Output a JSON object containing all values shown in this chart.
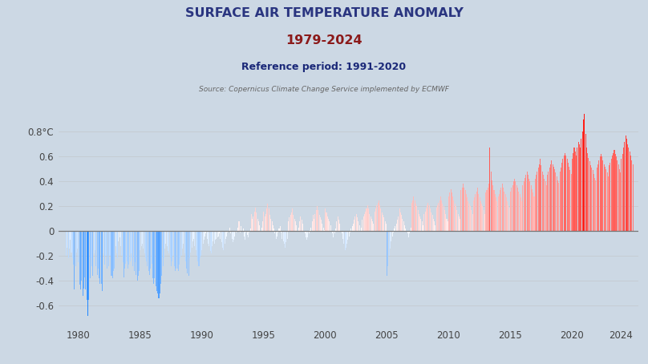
{
  "title_line1": "SURFACE AIR TEMPERATURE ANOMALY",
  "title_line2": "1979-2024",
  "subtitle": "Reference period: 1991-2020",
  "source": "Source: Copernicus Climate Change Service implemented by ECMWF",
  "ytick_labels": [
    "0.8°C",
    "0.6",
    "0.4",
    "0.2",
    "0",
    "-0.2",
    "-0.4",
    "-0.6"
  ],
  "ytick_values": [
    0.8,
    0.6,
    0.4,
    0.2,
    0.0,
    -0.2,
    -0.4,
    -0.6
  ],
  "xtick_years": [
    1980,
    1985,
    1990,
    1995,
    2000,
    2005,
    2010,
    2015,
    2020,
    2024
  ],
  "ylim": [
    -0.76,
    0.98
  ],
  "xlim": [
    1978.4,
    2025.4
  ],
  "bg_color": "#ccd8e4",
  "title_color1": "#2a3580",
  "title_color2": "#8b1a1a",
  "subtitle_color": "#1a2878",
  "source_color": "#666666",
  "start_year": 1979,
  "monthly_anomalies": [
    -0.2,
    -0.13,
    -0.22,
    -0.14,
    -0.07,
    -0.17,
    -0.22,
    -0.27,
    -0.47,
    -0.28,
    -0.17,
    -0.14,
    -0.25,
    -0.43,
    -0.47,
    -0.4,
    -0.52,
    -0.46,
    -0.37,
    -0.47,
    -0.55,
    -0.68,
    -0.55,
    -0.38,
    -0.22,
    -0.28,
    -0.36,
    -0.18,
    -0.15,
    -0.28,
    -0.35,
    -0.3,
    -0.38,
    -0.42,
    -0.42,
    -0.48,
    -0.18,
    -0.27,
    -0.2,
    -0.2,
    -0.3,
    -0.28,
    -0.2,
    -0.2,
    -0.36,
    -0.38,
    -0.32,
    -0.3,
    -0.12,
    -0.18,
    -0.22,
    -0.08,
    -0.05,
    -0.12,
    -0.2,
    -0.25,
    -0.37,
    -0.3,
    -0.26,
    -0.24,
    -0.3,
    -0.27,
    -0.24,
    -0.18,
    -0.22,
    -0.28,
    -0.32,
    -0.25,
    -0.35,
    -0.4,
    -0.36,
    -0.32,
    -0.15,
    -0.12,
    -0.1,
    -0.14,
    -0.18,
    -0.22,
    -0.24,
    -0.28,
    -0.32,
    -0.35,
    -0.3,
    -0.26,
    -0.38,
    -0.42,
    -0.38,
    -0.44,
    -0.48,
    -0.5,
    -0.54,
    -0.5,
    -0.42,
    -0.36,
    -0.28,
    -0.22,
    -0.14,
    -0.1,
    -0.12,
    -0.16,
    -0.18,
    -0.22,
    -0.28,
    -0.24,
    -0.2,
    -0.28,
    -0.32,
    -0.3,
    -0.3,
    -0.32,
    -0.27,
    -0.22,
    -0.2,
    -0.14,
    -0.1,
    -0.18,
    -0.24,
    -0.3,
    -0.34,
    -0.36,
    -0.22,
    -0.17,
    -0.13,
    -0.08,
    -0.06,
    -0.12,
    -0.15,
    -0.2,
    -0.24,
    -0.28,
    -0.22,
    -0.2,
    -0.15,
    -0.1,
    -0.07,
    -0.04,
    -0.02,
    -0.06,
    -0.1,
    -0.12,
    -0.16,
    -0.18,
    -0.12,
    -0.08,
    -0.1,
    -0.07,
    -0.06,
    -0.05,
    -0.04,
    -0.02,
    -0.06,
    -0.09,
    -0.13,
    -0.15,
    -0.1,
    -0.06,
    -0.04,
    -0.01,
    0.0,
    0.03,
    -0.02,
    -0.06,
    -0.09,
    -0.07,
    -0.04,
    -0.01,
    0.0,
    0.03,
    0.08,
    -0.01,
    0.04,
    0.0,
    0.02,
    -0.04,
    -0.07,
    -0.01,
    -0.03,
    -0.05,
    -0.01,
    0.02,
    0.14,
    0.1,
    0.12,
    0.16,
    0.19,
    0.15,
    0.1,
    0.08,
    0.05,
    0.0,
    0.03,
    0.08,
    0.16,
    0.12,
    0.14,
    0.18,
    0.22,
    0.18,
    0.13,
    0.1,
    0.08,
    0.05,
    0.02,
    -0.02,
    -0.06,
    -0.04,
    -0.01,
    0.02,
    0.04,
    -0.01,
    -0.06,
    -0.08,
    -0.1,
    -0.13,
    -0.09,
    -0.06,
    0.08,
    0.11,
    0.13,
    0.15,
    0.18,
    0.13,
    0.1,
    0.08,
    0.05,
    0.0,
    0.03,
    0.08,
    0.12,
    0.09,
    0.06,
    0.0,
    -0.02,
    -0.05,
    -0.07,
    -0.05,
    -0.02,
    0.01,
    0.03,
    0.08,
    0.13,
    0.1,
    0.14,
    0.17,
    0.2,
    0.17,
    0.13,
    0.11,
    0.09,
    0.06,
    0.03,
    0.01,
    0.18,
    0.15,
    0.12,
    0.1,
    0.08,
    0.05,
    0.0,
    -0.02,
    -0.05,
    -0.02,
    0.02,
    0.08,
    0.12,
    0.09,
    0.06,
    0.0,
    -0.02,
    -0.06,
    -0.1,
    -0.15,
    -0.13,
    -0.1,
    -0.07,
    -0.04,
    -0.01,
    0.02,
    0.04,
    0.06,
    0.09,
    0.12,
    0.14,
    0.11,
    0.08,
    0.05,
    0.0,
    0.03,
    0.09,
    0.12,
    0.14,
    0.16,
    0.18,
    0.21,
    0.18,
    0.14,
    0.12,
    0.1,
    0.08,
    0.06,
    0.16,
    0.18,
    0.21,
    0.23,
    0.25,
    0.21,
    0.18,
    0.15,
    0.13,
    0.11,
    0.08,
    0.06,
    -0.36,
    -0.28,
    -0.2,
    -0.14,
    -0.08,
    -0.04,
    -0.01,
    0.02,
    0.04,
    0.06,
    0.09,
    0.12,
    0.18,
    0.15,
    0.13,
    0.1,
    0.08,
    0.05,
    0.02,
    0.0,
    -0.02,
    -0.05,
    -0.02,
    0.03,
    0.23,
    0.25,
    0.28,
    0.25,
    0.22,
    0.2,
    0.17,
    0.14,
    0.12,
    0.1,
    0.08,
    0.05,
    0.14,
    0.16,
    0.18,
    0.21,
    0.23,
    0.21,
    0.18,
    0.15,
    0.13,
    0.1,
    0.08,
    0.05,
    0.19,
    0.21,
    0.23,
    0.25,
    0.28,
    0.25,
    0.22,
    0.2,
    0.17,
    0.14,
    0.1,
    0.08,
    0.28,
    0.31,
    0.34,
    0.31,
    0.28,
    0.25,
    0.22,
    0.2,
    0.17,
    0.14,
    0.12,
    0.1,
    0.33,
    0.35,
    0.38,
    0.35,
    0.33,
    0.3,
    0.27,
    0.24,
    0.22,
    0.2,
    0.17,
    0.14,
    0.25,
    0.27,
    0.3,
    0.32,
    0.35,
    0.3,
    0.27,
    0.24,
    0.22,
    0.2,
    0.17,
    0.14,
    0.31,
    0.33,
    0.35,
    0.38,
    0.67,
    0.48,
    0.41,
    0.37,
    0.33,
    0.3,
    0.27,
    0.24,
    0.28,
    0.3,
    0.33,
    0.35,
    0.38,
    0.35,
    0.32,
    0.3,
    0.27,
    0.24,
    0.21,
    0.19,
    0.32,
    0.35,
    0.37,
    0.4,
    0.42,
    0.4,
    0.37,
    0.35,
    0.32,
    0.3,
    0.27,
    0.24,
    0.37,
    0.4,
    0.43,
    0.45,
    0.48,
    0.45,
    0.42,
    0.4,
    0.37,
    0.34,
    0.31,
    0.28,
    0.42,
    0.45,
    0.48,
    0.51,
    0.54,
    0.58,
    0.53,
    0.48,
    0.45,
    0.42,
    0.4,
    0.37,
    0.45,
    0.48,
    0.51,
    0.54,
    0.57,
    0.54,
    0.52,
    0.5,
    0.47,
    0.44,
    0.41,
    0.39,
    0.48,
    0.51,
    0.55,
    0.58,
    0.61,
    0.63,
    0.61,
    0.58,
    0.55,
    0.52,
    0.49,
    0.46,
    0.58,
    0.63,
    0.67,
    0.64,
    0.61,
    0.67,
    0.72,
    0.7,
    0.67,
    0.74,
    0.8,
    0.9,
    0.94,
    0.78,
    0.67,
    0.63,
    0.59,
    0.56,
    0.53,
    0.51,
    0.49,
    0.46,
    0.43,
    0.41,
    0.51,
    0.54,
    0.57,
    0.6,
    0.62,
    0.6,
    0.57,
    0.54,
    0.52,
    0.5,
    0.47,
    0.44,
    0.53,
    0.55,
    0.58,
    0.61,
    0.63,
    0.65,
    0.62,
    0.6,
    0.57,
    0.54,
    0.5,
    0.47,
    0.58,
    0.62,
    0.67,
    0.72,
    0.77,
    0.74,
    0.7,
    0.67,
    0.64,
    0.61,
    0.57,
    0.54
  ]
}
